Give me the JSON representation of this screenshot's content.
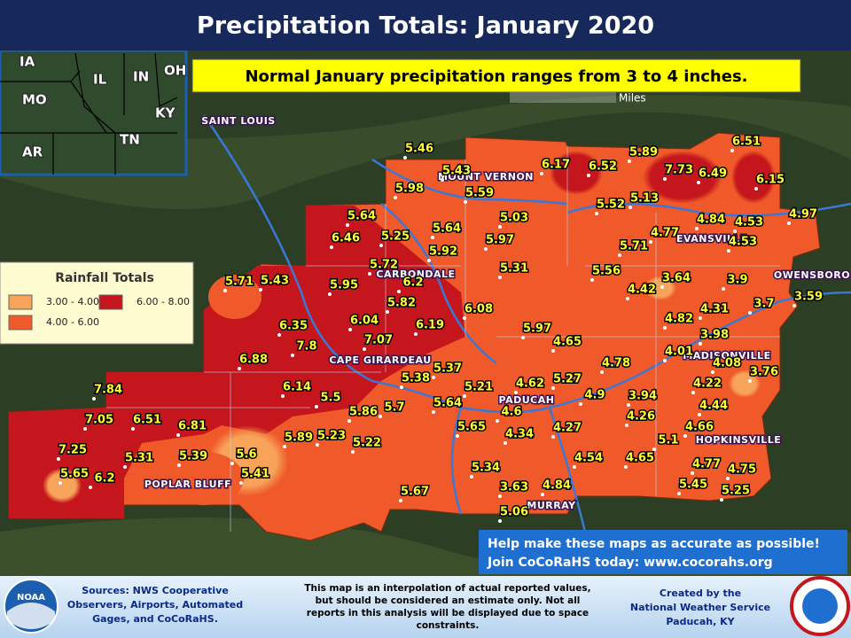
{
  "title": "Precipitation Totals: January 2020",
  "banner": "Normal January precipitation ranges from 3 to 4 inches.",
  "scale_label": "Miles",
  "inset_states": [
    "IA",
    "IL",
    "IN",
    "OH",
    "MO",
    "KY",
    "AR",
    "TN"
  ],
  "legend": {
    "title": "Rainfall Totals",
    "items": [
      {
        "label": "3.00 - 4.00",
        "color": "#f7a35a"
      },
      {
        "label": "4.00 - 6.00",
        "color": "#f05a2a"
      },
      {
        "label": "6.00 - 8.00",
        "color": "#c4161c"
      }
    ]
  },
  "cities": [
    "SAINT LOUIS",
    "MOUNT VERNON",
    "CARBONDALE",
    "EVANSVILLE",
    "OWENSBORO",
    "CAPE GIRARDEAU",
    "MADISONVILLE",
    "PADUCAH",
    "HOPKINSVILLE",
    "POPLAR BLUFF",
    "MURRAY"
  ],
  "stations": [
    5.46,
    5.43,
    6.17,
    6.52,
    5.89,
    6.51,
    5.98,
    5.59,
    7.73,
    6.49,
    6.15,
    5.13,
    5.52,
    5.64,
    5.03,
    5.64,
    4.84,
    4.53,
    4.97,
    6.46,
    5.25,
    5.97,
    4.77,
    4.53,
    5.92,
    5.71,
    5.72,
    5.31,
    5.71,
    5.43,
    5.95,
    6.2,
    5.56,
    4.42,
    3.64,
    3.9,
    5.82,
    6.08,
    4.31,
    3.7,
    3.59,
    6.35,
    6.04,
    6.19,
    5.97,
    4.65,
    4.82,
    7.8,
    7.07,
    3.98,
    6.88,
    4.78,
    4.01,
    4.08,
    3.76,
    5.37,
    7.84,
    6.14,
    5.5,
    5.38,
    5.21,
    4.62,
    5.27,
    4.22,
    3.94,
    4.9,
    7.05,
    6.51,
    5.86,
    5.7,
    5.64,
    4.6,
    4.44,
    4.26,
    6.81,
    5.65,
    4.27,
    4.34,
    4.66,
    5.89,
    5.23,
    5.22,
    5.6,
    5.1,
    7.25,
    5.31,
    5.39,
    4.54,
    4.65,
    4.77,
    4.75,
    5.65,
    6.2,
    5.41,
    5.34,
    3.63,
    4.84,
    5.45,
    5.25,
    5.67,
    5.06
  ],
  "cocorahs": [
    "Help make these maps as accurate as possible!",
    "Join CoCoRaHS today: www.cocorahs.org"
  ],
  "footer": {
    "sources": [
      "Sources: NWS Cooperative",
      "Observers, Airports, Automated",
      "Gages, and CoCoRaHS."
    ],
    "disclaimer": [
      "This map is an interpolation of actual reported values,",
      "but should be considered an estimate only. Not all",
      "reports in this analysis will be displayed due to space",
      "constraints."
    ],
    "credit": [
      "Created by the",
      "National Weather Service",
      "Paducah, KY"
    ],
    "logo_left": "NOAA"
  }
}
